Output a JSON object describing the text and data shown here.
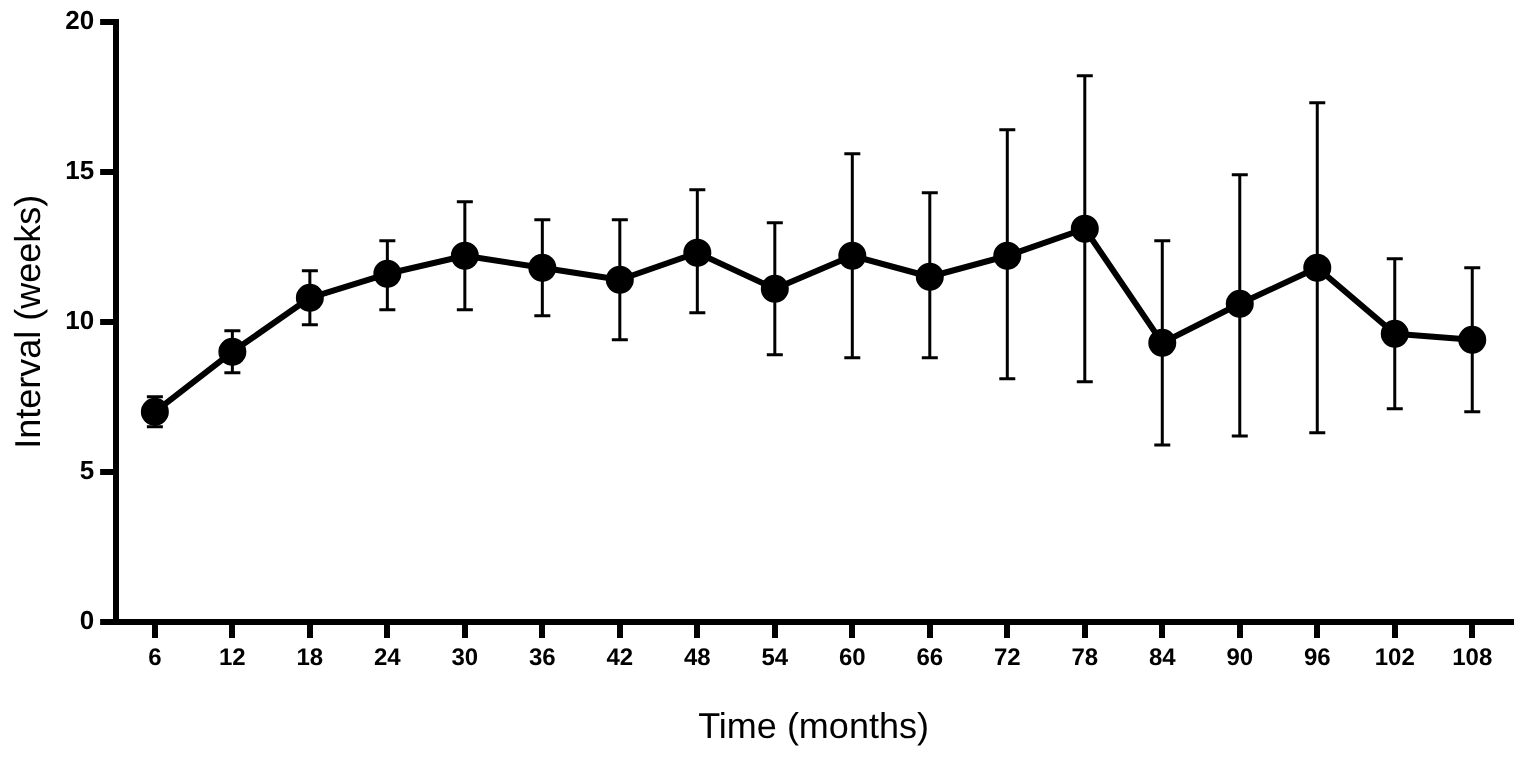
{
  "chart_data": {
    "type": "line",
    "xlabel": "Time (months)",
    "ylabel": "Interval (weeks)",
    "categories": [
      "6",
      "12",
      "18",
      "24",
      "30",
      "36",
      "42",
      "48",
      "54",
      "60",
      "66",
      "72",
      "78",
      "84",
      "90",
      "96",
      "102",
      "108"
    ],
    "series": [
      {
        "color": "#000000",
        "values": [
          7.0,
          9.0,
          10.8,
          11.6,
          12.2,
          11.8,
          11.4,
          12.3,
          11.1,
          12.2,
          11.5,
          12.2,
          13.1,
          9.3,
          10.6,
          11.8,
          9.6,
          9.4
        ],
        "errors": [
          [
            6.5,
            7.5
          ],
          [
            8.3,
            9.7
          ],
          [
            9.9,
            11.7
          ],
          [
            10.4,
            12.7
          ],
          [
            10.4,
            14.0
          ],
          [
            10.2,
            13.4
          ],
          [
            9.4,
            13.4
          ],
          [
            10.3,
            14.4
          ],
          [
            8.9,
            13.3
          ],
          [
            8.8,
            15.6
          ],
          [
            8.8,
            14.3
          ],
          [
            8.1,
            16.4
          ],
          [
            8.0,
            18.2
          ],
          [
            5.9,
            12.7
          ],
          [
            6.2,
            14.9
          ],
          [
            6.3,
            17.3
          ],
          [
            7.1,
            12.1
          ],
          [
            7.0,
            11.8
          ]
        ]
      }
    ],
    "ylim": [
      0,
      20
    ],
    "yticks": [
      0,
      5,
      10,
      15,
      20
    ],
    "grid": false,
    "legend": false,
    "marker": "circle",
    "line_style": "solid"
  }
}
